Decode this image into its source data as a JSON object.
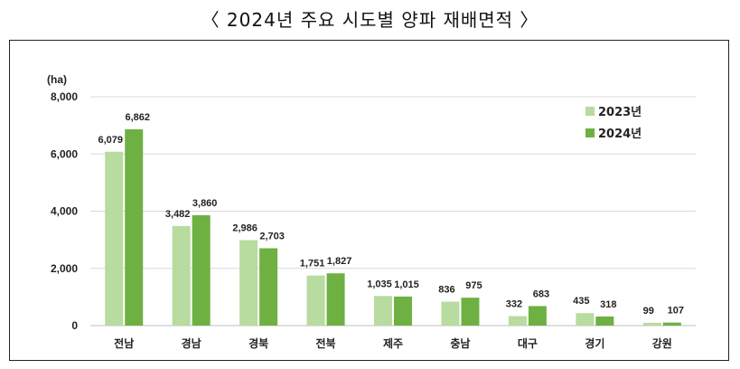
{
  "title": "〈 2024년 주요 시도별 양파 재배면적 〉",
  "colors": {
    "series2023": "#b8dba0",
    "series2024": "#6fb043",
    "grid": "#d9d9d9"
  },
  "chart_data": {
    "type": "bar",
    "unit_label": "(ha)",
    "categories": [
      "전남",
      "경남",
      "경북",
      "전북",
      "제주",
      "충남",
      "대구",
      "경기",
      "강원"
    ],
    "series": [
      {
        "name": "2023년",
        "values": [
          6079,
          3482,
          2986,
          1751,
          1035,
          836,
          332,
          435,
          99
        ],
        "labels": [
          "6,079",
          "3,482",
          "2,986",
          "1,751",
          "1,035",
          "836",
          "332",
          "435",
          "99"
        ]
      },
      {
        "name": "2024년",
        "values": [
          6862,
          3860,
          2703,
          1827,
          1015,
          975,
          683,
          318,
          107
        ],
        "labels": [
          "6,862",
          "3,860",
          "2,703",
          "1,827",
          "1,015",
          "975",
          "683",
          "318",
          "107"
        ]
      }
    ],
    "ylim": [
      0,
      8000
    ],
    "yticks": [
      0,
      2000,
      4000,
      6000,
      8000
    ],
    "ytick_labels": [
      "0",
      "2,000",
      "4,000",
      "6,000",
      "8,000"
    ],
    "grid": true,
    "legend_position": "top-right"
  }
}
